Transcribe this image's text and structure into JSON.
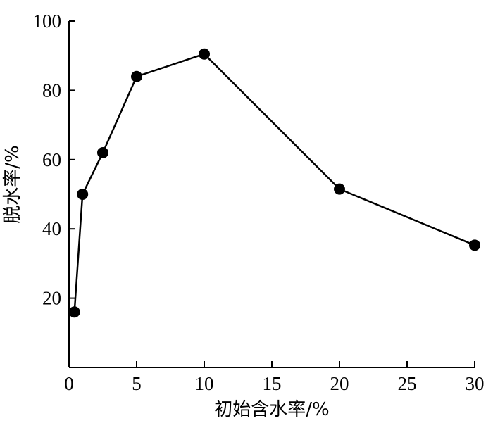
{
  "chart_data": {
    "type": "line",
    "title": "",
    "xlabel": "初始含水率/%",
    "ylabel": "脱水率/%",
    "xlim": [
      0,
      30
    ],
    "ylim": [
      0,
      100
    ],
    "x_ticks": [
      "0",
      "5",
      "10",
      "15",
      "20",
      "25",
      "30"
    ],
    "y_ticks": [
      "20",
      "40",
      "60",
      "80",
      "100"
    ],
    "grid": false,
    "legend": "none",
    "series": [
      {
        "x": [
          0.4,
          1.0,
          2.5,
          5,
          10,
          20,
          30
        ],
        "y": [
          16,
          50,
          62,
          84,
          90.5,
          51.5,
          35.3
        ]
      }
    ],
    "colors": {
      "line": "#000000",
      "marker": "#000000"
    }
  }
}
